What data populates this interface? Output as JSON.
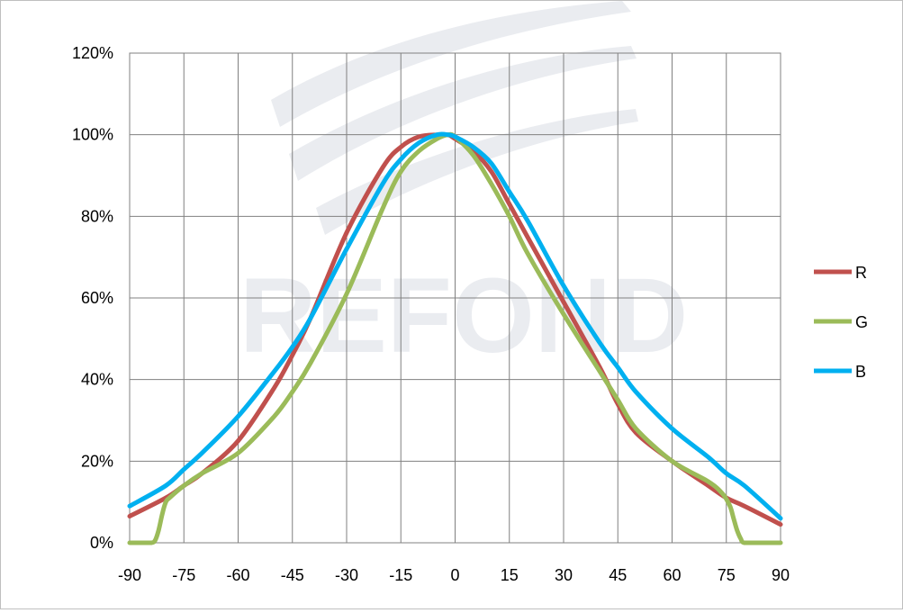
{
  "chart_data": {
    "type": "line",
    "title": "",
    "xlabel": "",
    "ylabel": "",
    "xlim": [
      -90,
      90
    ],
    "ylim": [
      0,
      120
    ],
    "x_ticks": [
      "-90",
      "-75",
      "-60",
      "-45",
      "-30",
      "-15",
      "0",
      "15",
      "30",
      "45",
      "60",
      "75",
      "90"
    ],
    "y_ticks": [
      "0%",
      "20%",
      "40%",
      "60%",
      "80%",
      "100%",
      "120%"
    ],
    "grid": true,
    "legend_position": "right",
    "watermark": "REFOND",
    "series": [
      {
        "name": "R",
        "color": "#c0504d",
        "x": [
          -90,
          -80,
          -75,
          -70,
          -60,
          -50,
          -45,
          -40,
          -30,
          -20,
          -15,
          -10,
          -5,
          -2,
          0,
          5,
          10,
          15,
          20,
          30,
          40,
          45,
          50,
          60,
          70,
          75,
          80,
          90
        ],
        "y": [
          6.5,
          11,
          14,
          17,
          25,
          38,
          46,
          55,
          76,
          92,
          97,
          99.5,
          100,
          100,
          99,
          96,
          91,
          83,
          75,
          59,
          43,
          34,
          27,
          20,
          14,
          11,
          9,
          4.5
        ]
      },
      {
        "name": "G",
        "color": "#9bbb59",
        "x": [
          -90,
          -86,
          -84,
          -83,
          -82,
          -81,
          -80,
          -79,
          -75,
          -70,
          -60,
          -50,
          -45,
          -40,
          -30,
          -20,
          -15,
          -10,
          -5,
          -2,
          0,
          5,
          10,
          15,
          20,
          30,
          40,
          45,
          50,
          60,
          70,
          74,
          76,
          77,
          78,
          79,
          80,
          85,
          90
        ],
        "y": [
          0,
          0,
          0,
          0.5,
          3,
          7,
          10,
          11,
          14,
          17,
          22,
          31,
          37,
          44,
          61,
          82,
          91,
          96,
          99,
          100,
          99.5,
          95,
          88,
          80,
          71,
          56,
          42,
          35,
          28,
          20,
          15,
          12,
          9,
          6,
          3,
          1,
          0,
          0,
          0
        ]
      },
      {
        "name": "B",
        "color": "#00b0f0",
        "x": [
          -90,
          -80,
          -75,
          -70,
          -60,
          -50,
          -45,
          -40,
          -30,
          -20,
          -15,
          -10,
          -5,
          -2,
          0,
          5,
          10,
          15,
          20,
          30,
          40,
          45,
          50,
          60,
          70,
          75,
          80,
          90
        ],
        "y": [
          9,
          14,
          18,
          22,
          31,
          42,
          48,
          55,
          72,
          88,
          94,
          98,
          100,
          100,
          99.5,
          97,
          93,
          86,
          79,
          63,
          49,
          43,
          37,
          28,
          21,
          17,
          14,
          6
        ]
      }
    ]
  }
}
